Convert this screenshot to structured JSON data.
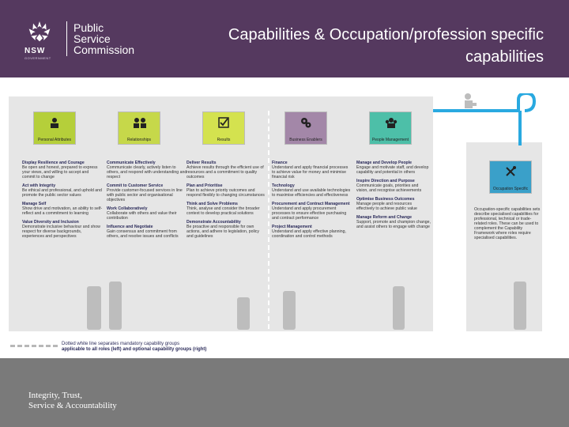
{
  "header": {
    "logo_lines": [
      "Public",
      "Service",
      "Commission"
    ],
    "nsw": "NSW",
    "nsw_sub": "GOVERNMENT",
    "title": "Capabilities & Occupation/profession specific capabilities"
  },
  "groups": [
    {
      "label": "Personal Attributes",
      "color": "#b5cf3a"
    },
    {
      "label": "Relationships",
      "color": "#c6d84a"
    },
    {
      "label": "Results",
      "color": "#d4e24f"
    },
    {
      "label": "Business Enablers",
      "color": "#a387a8"
    },
    {
      "label": "People Management",
      "color": "#4dbfa8"
    },
    {
      "label": "Occupation Specific",
      "color": "#3aa0c9"
    }
  ],
  "columns": [
    {
      "items": [
        {
          "h": "Display Resilience and Courage",
          "b": "Be open and honest, prepared to express your views, and willing to accept and commit to change"
        },
        {
          "h": "Act with Integrity",
          "b": "Be ethical and professional, and uphold and promote the public sector values"
        },
        {
          "h": "Manage Self",
          "b": "Show drive and motivation, an ability to self-reflect and a commitment to learning"
        },
        {
          "h": "Value Diversity and Inclusion",
          "b": "Demonstrate inclusive behaviour and show respect for diverse backgrounds, experiences and perspectives"
        }
      ]
    },
    {
      "items": [
        {
          "h": "Communicate Effectively",
          "b": "Communicate clearly, actively listen to others, and respond with understanding and respect"
        },
        {
          "h": "Commit to Customer Service",
          "b": "Provide customer-focused services in line with public sector and organisational objectives"
        },
        {
          "h": "Work Collaboratively",
          "b": "Collaborate with others and value their contribution"
        },
        {
          "h": "Influence and Negotiate",
          "b": "Gain consensus and commitment from others, and resolve issues and conflicts"
        }
      ]
    },
    {
      "items": [
        {
          "h": "Deliver Results",
          "b": "Achieve results through the efficient use of resources and a commitment to quality outcomes"
        },
        {
          "h": "Plan and Prioritise",
          "b": "Plan to achieve priority outcomes and respond flexibly to changing circumstances"
        },
        {
          "h": "Think and Solve Problems",
          "b": "Think, analyse and consider the broader context to develop practical solutions"
        },
        {
          "h": "Demonstrate Accountability",
          "b": "Be proactive and responsible for own actions, and adhere to legislation, policy and guidelines"
        }
      ]
    },
    {
      "items": [
        {
          "h": "Finance",
          "b": "Understand and apply financial processes to achieve value for money and minimise financial risk"
        },
        {
          "h": "Technology",
          "b": "Understand and use available technologies to maximise efficiencies and effectiveness"
        },
        {
          "h": "Procurement and Contract Management",
          "b": "Understand and apply procurement processes to ensure effective purchasing and contract performance"
        },
        {
          "h": "Project Management",
          "b": "Understand and apply effective planning, coordination and control methods"
        }
      ]
    },
    {
      "items": [
        {
          "h": "Manage and Develop People",
          "b": "Engage and motivate staff, and develop capability and potential in others"
        },
        {
          "h": "Inspire Direction and Purpose",
          "b": "Communicate goals, priorities and vision, and recognise achievements"
        },
        {
          "h": "Optimise Business Outcomes",
          "b": "Manage people and resources effectively to achieve public value"
        },
        {
          "h": "Manage Reform and Change",
          "b": "Support, promote and champion change, and assist others to engage with change"
        }
      ]
    }
  ],
  "occupation_text": "Occupation-specific capabilities sets describe specialised capabilities for professional, technical or trade-related roles. These can be used to complement the Capability Framework where roles require specialised capabilities.",
  "legend": {
    "line1": "Dotted white line separates mandatory capability groups",
    "line2": "applicable to all roles (left) and optional capability groups (right)"
  },
  "footer": {
    "line1": "Integrity, Trust,",
    "line2": "Service & Accountability"
  }
}
